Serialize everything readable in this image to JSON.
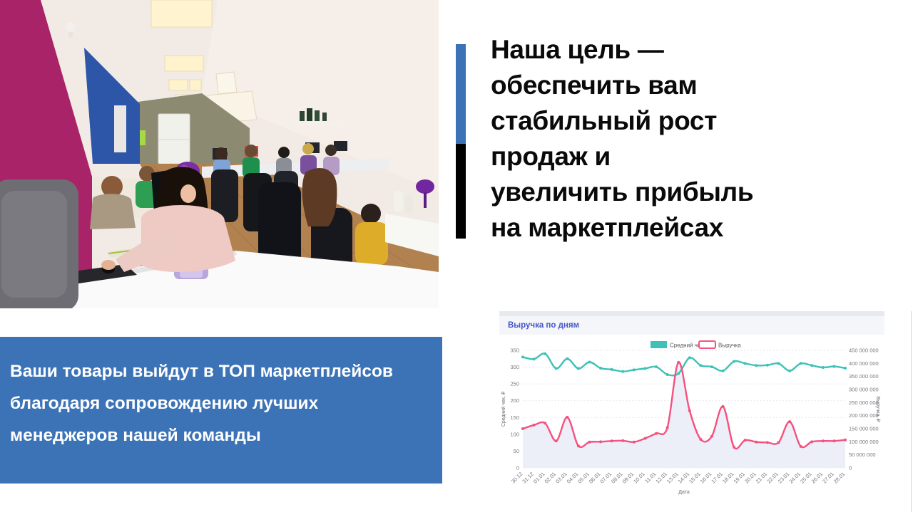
{
  "slide": {
    "headline": "Наша цель —\nобеспечить вам\nстабильный рост\nпродаж и\nувеличить прибыль\nна маркетплейсах",
    "callout": "Ваши товары выйдут в ТОП маркетплейсов\nблагодаря сопровождению лучших\nменеджеров нашей  команды"
  },
  "chart_widget": {
    "title": "Выручка по дням"
  },
  "colors": {
    "accent_blue": "#3b73b6",
    "accent_black": "#000000",
    "headline_text": "#0a0a0a",
    "callout_bg": "#3b73b6",
    "callout_text": "#ffffff",
    "widget_title_blue": "#4356c8",
    "chart_teal": "#3EC1B6",
    "chart_pink": "#F4517E",
    "chart_area_fill": "#EDEFF8",
    "photo_wall_magenta": "#a92368",
    "photo_wall_blue": "#2d55a8"
  },
  "chart_data": {
    "type": "line",
    "title": "Выручка по дням",
    "xlabel": "Дата",
    "x": [
      "30.12",
      "31.12",
      "01.01",
      "02.01",
      "03.01",
      "04.01",
      "05.01",
      "06.01",
      "07.01",
      "08.01",
      "09.01",
      "10.01",
      "11.01",
      "12.01",
      "13.01",
      "14.01",
      "15.01",
      "16.01",
      "17.01",
      "18.01",
      "19.01",
      "20.01",
      "21.01",
      "22.01",
      "23.01",
      "24.01",
      "25.01",
      "26.01",
      "27.01",
      "28.01"
    ],
    "left_axis": {
      "label": "Средний чек, ₽",
      "min": 0,
      "max": 350,
      "step": 50
    },
    "right_axis": {
      "label": "Выручка, ₽",
      "min": 0,
      "max": 450000000,
      "step": 50000000
    },
    "legend_position": "top",
    "grid": "horizontal-dotted",
    "series": [
      {
        "name": "Средний чек",
        "axis": "left",
        "color": "#3EC1B6",
        "values": [
          330,
          324,
          340,
          296,
          325,
          296,
          315,
          297,
          293,
          287,
          292,
          296,
          301,
          278,
          281,
          328,
          305,
          301,
          289,
          317,
          311,
          305,
          306,
          311,
          289,
          311,
          305,
          299,
          302,
          297
        ]
      },
      {
        "name": "Выручка",
        "axis": "right",
        "color": "#F4517E",
        "fill": "#EDEFF8",
        "values": [
          150000000,
          164000000,
          171000000,
          103000000,
          194000000,
          84000000,
          99000000,
          100000000,
          103000000,
          104000000,
          99000000,
          113000000,
          132000000,
          154000000,
          404000000,
          219000000,
          109000000,
          121000000,
          235000000,
          79000000,
          106000000,
          99000000,
          97000000,
          97000000,
          177000000,
          82000000,
          100000000,
          103000000,
          103000000,
          107000000
        ]
      }
    ]
  }
}
